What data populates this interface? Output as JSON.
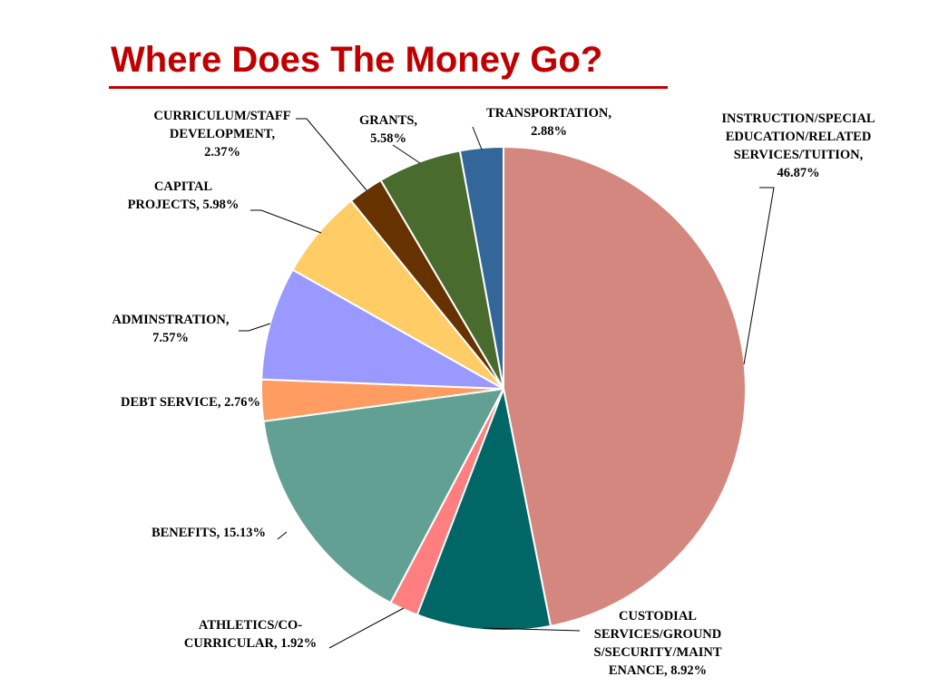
{
  "title": "Where Does The Money Go?",
  "chart_data": {
    "type": "pie",
    "title": "Where Does The Money Go?",
    "slices": [
      {
        "label": "INSTRUCTION/SPECIAL EDUCATION/RELATED SERVICES/TUITION",
        "value": 46.87,
        "label_lines": [
          "INSTRUCTION/SPECIAL",
          "EDUCATION/RELATED",
          "SERVICES/TUITION,",
          "46.87%"
        ],
        "color": "#d4877f"
      },
      {
        "label": "CUSTODIAL SERVICES/GROUNDS/SECURITY/MAINTENANCE",
        "value": 8.92,
        "label_lines": [
          "CUSTODIAL",
          "SERVICES/GROUND",
          "S/SECURITY/MAINT",
          "ENANCE, 8.92%"
        ],
        "color": "#006666"
      },
      {
        "label": "ATHLETICS/CO-CURRICULAR",
        "value": 1.92,
        "label_lines": [
          "ATHLETICS/CO-",
          "CURRICULAR, 1.92%"
        ],
        "color": "#ff7f80"
      },
      {
        "label": "BENEFITS",
        "value": 15.13,
        "label_lines": [
          "BENEFITS, 15.13%"
        ],
        "color": "#63a094"
      },
      {
        "label": "DEBT SERVICE",
        "value": 2.76,
        "label_lines": [
          "DEBT SERVICE, 2.76%"
        ],
        "color": "#fe9c62"
      },
      {
        "label": "ADMINSTRATION",
        "value": 7.57,
        "label_lines": [
          "ADMINSTRATION,",
          "7.57%"
        ],
        "color": "#9999ff"
      },
      {
        "label": "CAPITAL PROJECTS",
        "value": 5.98,
        "label_lines": [
          "CAPITAL",
          "PROJECTS, 5.98%"
        ],
        "color": "#ffcc66"
      },
      {
        "label": "CURRICULUM/STAFF DEVELOPMENT",
        "value": 2.37,
        "label_lines": [
          "CURRICULUM/STAFF",
          "DEVELOPMENT,",
          "2.37%"
        ],
        "color": "#663300"
      },
      {
        "label": "GRANTS",
        "value": 5.58,
        "label_lines": [
          "GRANTS,",
          "5.58%"
        ],
        "color": "#4a6b2e"
      },
      {
        "label": "TRANSPORTATION",
        "value": 2.88,
        "label_lines": [
          "TRANSPORTATION,",
          "2.88%"
        ],
        "color": "#336699"
      }
    ],
    "legend": "none",
    "start_angle": "12 o'clock",
    "direction": "clockwise"
  }
}
